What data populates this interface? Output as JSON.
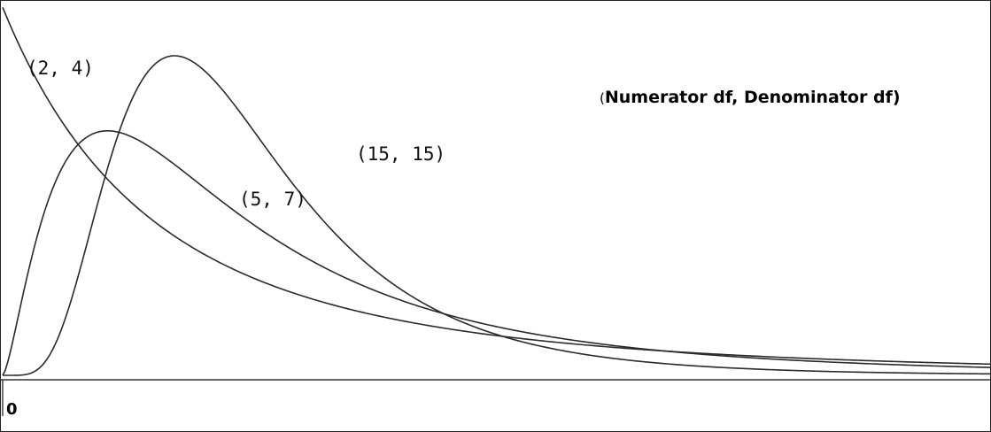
{
  "chart_data": {
    "type": "line",
    "title": "",
    "xlabel": "",
    "ylabel": "",
    "xlim": [
      0,
      4.4
    ],
    "ylim": [
      0,
      1.02
    ],
    "grid": false,
    "legend": {
      "open_paren": "(",
      "text": "Numerator df, Denominator df)",
      "placement": "top-right"
    },
    "x_tick_labels": [
      "0"
    ],
    "series": [
      {
        "name": "(2, 4)",
        "d1": 2,
        "d2": 4
      },
      {
        "name": "(5, 7)",
        "d1": 5,
        "d2": 7
      },
      {
        "name": "(15, 15)",
        "d1": 15,
        "d2": 15
      }
    ]
  }
}
